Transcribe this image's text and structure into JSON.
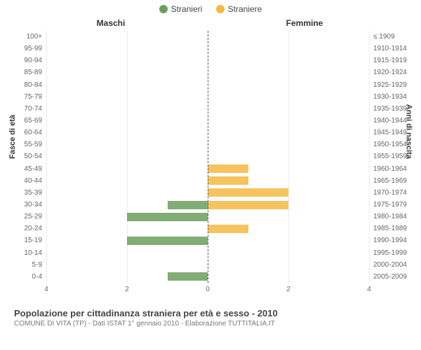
{
  "legend": {
    "male": {
      "label": "Stranieri",
      "color": "#6b9e5d"
    },
    "female": {
      "label": "Straniere",
      "color": "#f5b942"
    }
  },
  "chart": {
    "type": "population-pyramid",
    "left_title": "Maschi",
    "right_title": "Femmine",
    "y_left_title": "Fasce di età",
    "y_right_title": "Anni di nascita",
    "xlim": 4,
    "xtick_step": 2,
    "background_color": "#ffffff",
    "grid_color": "#ececec",
    "center_line_color": "#555555",
    "rows": [
      {
        "age": "100+",
        "birth": "≤ 1909",
        "m": 0,
        "f": 0
      },
      {
        "age": "95-99",
        "birth": "1910-1914",
        "m": 0,
        "f": 0
      },
      {
        "age": "90-94",
        "birth": "1915-1919",
        "m": 0,
        "f": 0
      },
      {
        "age": "85-89",
        "birth": "1920-1924",
        "m": 0,
        "f": 0
      },
      {
        "age": "80-84",
        "birth": "1925-1929",
        "m": 0,
        "f": 0
      },
      {
        "age": "75-79",
        "birth": "1930-1934",
        "m": 0,
        "f": 0
      },
      {
        "age": "70-74",
        "birth": "1935-1939",
        "m": 0,
        "f": 0
      },
      {
        "age": "65-69",
        "birth": "1940-1944",
        "m": 0,
        "f": 0
      },
      {
        "age": "60-64",
        "birth": "1945-1949",
        "m": 0,
        "f": 0
      },
      {
        "age": "55-59",
        "birth": "1950-1954",
        "m": 0,
        "f": 0
      },
      {
        "age": "50-54",
        "birth": "1955-1959",
        "m": 0,
        "f": 0
      },
      {
        "age": "45-49",
        "birth": "1960-1964",
        "m": 0,
        "f": 1
      },
      {
        "age": "40-44",
        "birth": "1965-1969",
        "m": 0,
        "f": 1
      },
      {
        "age": "35-39",
        "birth": "1970-1974",
        "m": 0,
        "f": 2
      },
      {
        "age": "30-34",
        "birth": "1975-1979",
        "m": 1,
        "f": 2
      },
      {
        "age": "25-29",
        "birth": "1980-1984",
        "m": 2,
        "f": 0
      },
      {
        "age": "20-24",
        "birth": "1985-1989",
        "m": 0,
        "f": 1
      },
      {
        "age": "15-19",
        "birth": "1990-1994",
        "m": 2,
        "f": 0
      },
      {
        "age": "10-14",
        "birth": "1995-1999",
        "m": 0,
        "f": 0
      },
      {
        "age": "5-9",
        "birth": "2000-2004",
        "m": 0,
        "f": 0
      },
      {
        "age": "0-4",
        "birth": "2005-2009",
        "m": 1,
        "f": 0
      }
    ]
  },
  "caption": {
    "title": "Popolazione per cittadinanza straniera per età e sesso - 2010",
    "subtitle": "COMUNE DI VITA (TP) - Dati ISTAT 1° gennaio 2010 - Elaborazione TUTTITALIA.IT"
  }
}
